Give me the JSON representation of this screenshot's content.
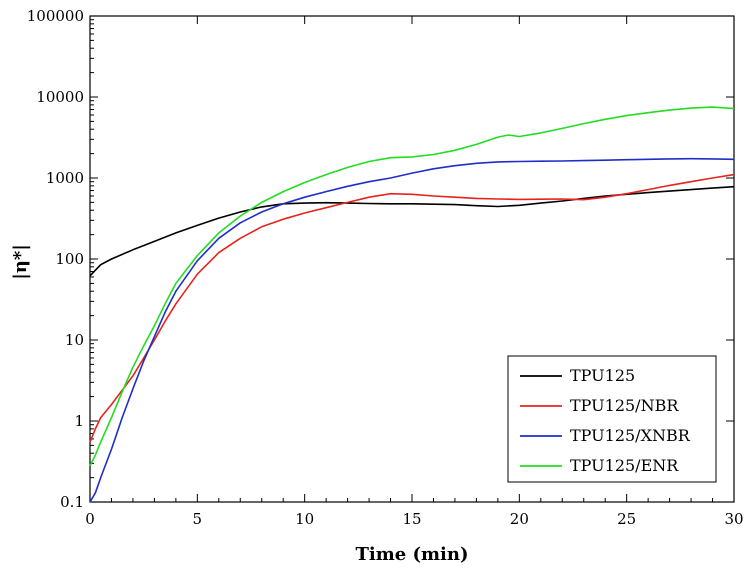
{
  "chart_data": {
    "type": "line",
    "title": "",
    "xlabel": "Time (min)",
    "ylabel": "|η*|",
    "xlim": [
      0,
      30
    ],
    "ylim": [
      0.1,
      100000
    ],
    "y_scale": "log",
    "grid": false,
    "legend_position": "bottom-right",
    "x_ticks": [
      0,
      5,
      10,
      15,
      20,
      25,
      30
    ],
    "x_tick_labels": [
      "0",
      "5",
      "10",
      "15",
      "20",
      "25",
      "30"
    ],
    "y_ticks": [
      0.1,
      1,
      10,
      100,
      1000,
      10000,
      100000
    ],
    "y_tick_labels": [
      "0.1",
      "1",
      "10",
      "100",
      "1000",
      "10000",
      "100000"
    ],
    "series": [
      {
        "name": "TPU125",
        "color": "#000000",
        "x": [
          0,
          0.5,
          1,
          2,
          3,
          4,
          5,
          6,
          7,
          8,
          9,
          10,
          11,
          12,
          13,
          14,
          15,
          16,
          17,
          18,
          19,
          20,
          21,
          22,
          23,
          24,
          25,
          26,
          27,
          28,
          29,
          30
        ],
        "y": [
          62,
          85,
          100,
          130,
          165,
          210,
          260,
          320,
          380,
          440,
          480,
          490,
          495,
          490,
          485,
          480,
          480,
          475,
          470,
          455,
          445,
          460,
          490,
          520,
          560,
          600,
          630,
          660,
          690,
          720,
          750,
          780
        ]
      },
      {
        "name": "TPU125/NBR",
        "color": "#e8231e",
        "x": [
          0,
          0.25,
          0.5,
          1,
          1.5,
          2,
          2.5,
          3,
          3.5,
          4,
          5,
          6,
          7,
          8,
          9,
          10,
          11,
          12,
          13,
          14,
          15,
          16,
          17,
          18,
          19,
          20,
          21,
          22,
          23,
          24,
          25,
          26,
          27,
          28,
          29,
          30
        ],
        "y": [
          0.55,
          0.8,
          1.1,
          1.6,
          2.4,
          3.6,
          6,
          10,
          17,
          28,
          65,
          120,
          180,
          250,
          310,
          370,
          430,
          500,
          580,
          640,
          630,
          600,
          580,
          560,
          550,
          545,
          548,
          550,
          540,
          580,
          640,
          720,
          810,
          900,
          1000,
          1100
        ]
      },
      {
        "name": "TPU125/XNBR",
        "color": "#1f2ec9",
        "x": [
          0,
          0.25,
          0.5,
          1,
          1.5,
          2,
          2.5,
          3,
          3.5,
          4,
          5,
          6,
          7,
          8,
          9,
          10,
          11,
          12,
          13,
          14,
          15,
          16,
          17,
          18,
          19,
          20,
          21,
          22,
          23,
          24,
          25,
          26,
          27,
          28,
          29,
          30
        ],
        "y": [
          0.1,
          0.13,
          0.2,
          0.45,
          1.1,
          2.5,
          5.5,
          11,
          22,
          40,
          95,
          180,
          280,
          380,
          480,
          580,
          680,
          790,
          900,
          1000,
          1150,
          1300,
          1420,
          1520,
          1580,
          1600,
          1610,
          1620,
          1640,
          1660,
          1680,
          1700,
          1720,
          1730,
          1720,
          1700
        ]
      },
      {
        "name": "TPU125/ENR",
        "color": "#22dd22",
        "x": [
          0,
          0.25,
          0.5,
          1,
          1.5,
          2,
          2.5,
          3,
          3.5,
          4,
          5,
          6,
          7,
          8,
          9,
          10,
          11,
          12,
          13,
          14,
          15,
          16,
          17,
          18,
          19,
          19.5,
          20,
          21,
          22,
          23,
          24,
          25,
          26,
          27,
          28,
          29,
          30
        ],
        "y": [
          0.28,
          0.38,
          0.55,
          1.1,
          2.3,
          4.6,
          8.5,
          15,
          28,
          50,
          110,
          210,
          340,
          500,
          680,
          880,
          1100,
          1350,
          1600,
          1780,
          1820,
          1950,
          2200,
          2600,
          3200,
          3400,
          3250,
          3600,
          4100,
          4700,
          5300,
          5900,
          6400,
          6900,
          7300,
          7500,
          7200
        ]
      }
    ]
  }
}
